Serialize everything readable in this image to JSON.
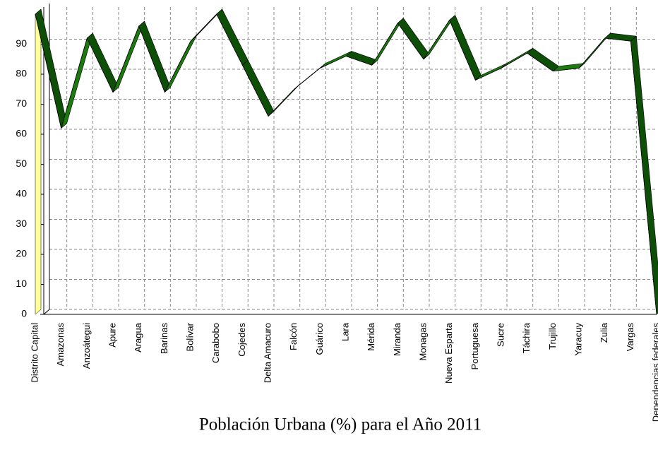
{
  "chart_data": {
    "type": "line",
    "title": "Población Urbana (%) para el Año 2011",
    "categories": [
      "Distrito Capital",
      "Amazonas",
      "Anzoátegui",
      "Apure",
      "Aragua",
      "Barinas",
      "Bolívar",
      "Carabobo",
      "Cojedes",
      "Delta Amacuro",
      "Falcón",
      "Guárico",
      "Lara",
      "Mérida",
      "Miranda",
      "Monagas",
      "Nueva Esparta",
      "Portuguesa",
      "Sucre",
      "Táchira",
      "Trujillo",
      "Yaracuy",
      "Zulia",
      "Vargas",
      "Dependencias federales"
    ],
    "values": [
      100,
      62,
      92,
      74,
      96,
      74,
      91,
      100,
      83,
      66,
      75,
      82,
      86,
      83,
      97,
      85,
      98,
      78,
      82,
      87,
      81,
      82,
      92,
      91,
      0
    ],
    "color": "#1a7a0c",
    "ylim": [
      0,
      100
    ],
    "yticks": [
      0,
      10,
      20,
      30,
      40,
      50,
      60,
      70,
      80,
      90
    ],
    "grid": true
  }
}
